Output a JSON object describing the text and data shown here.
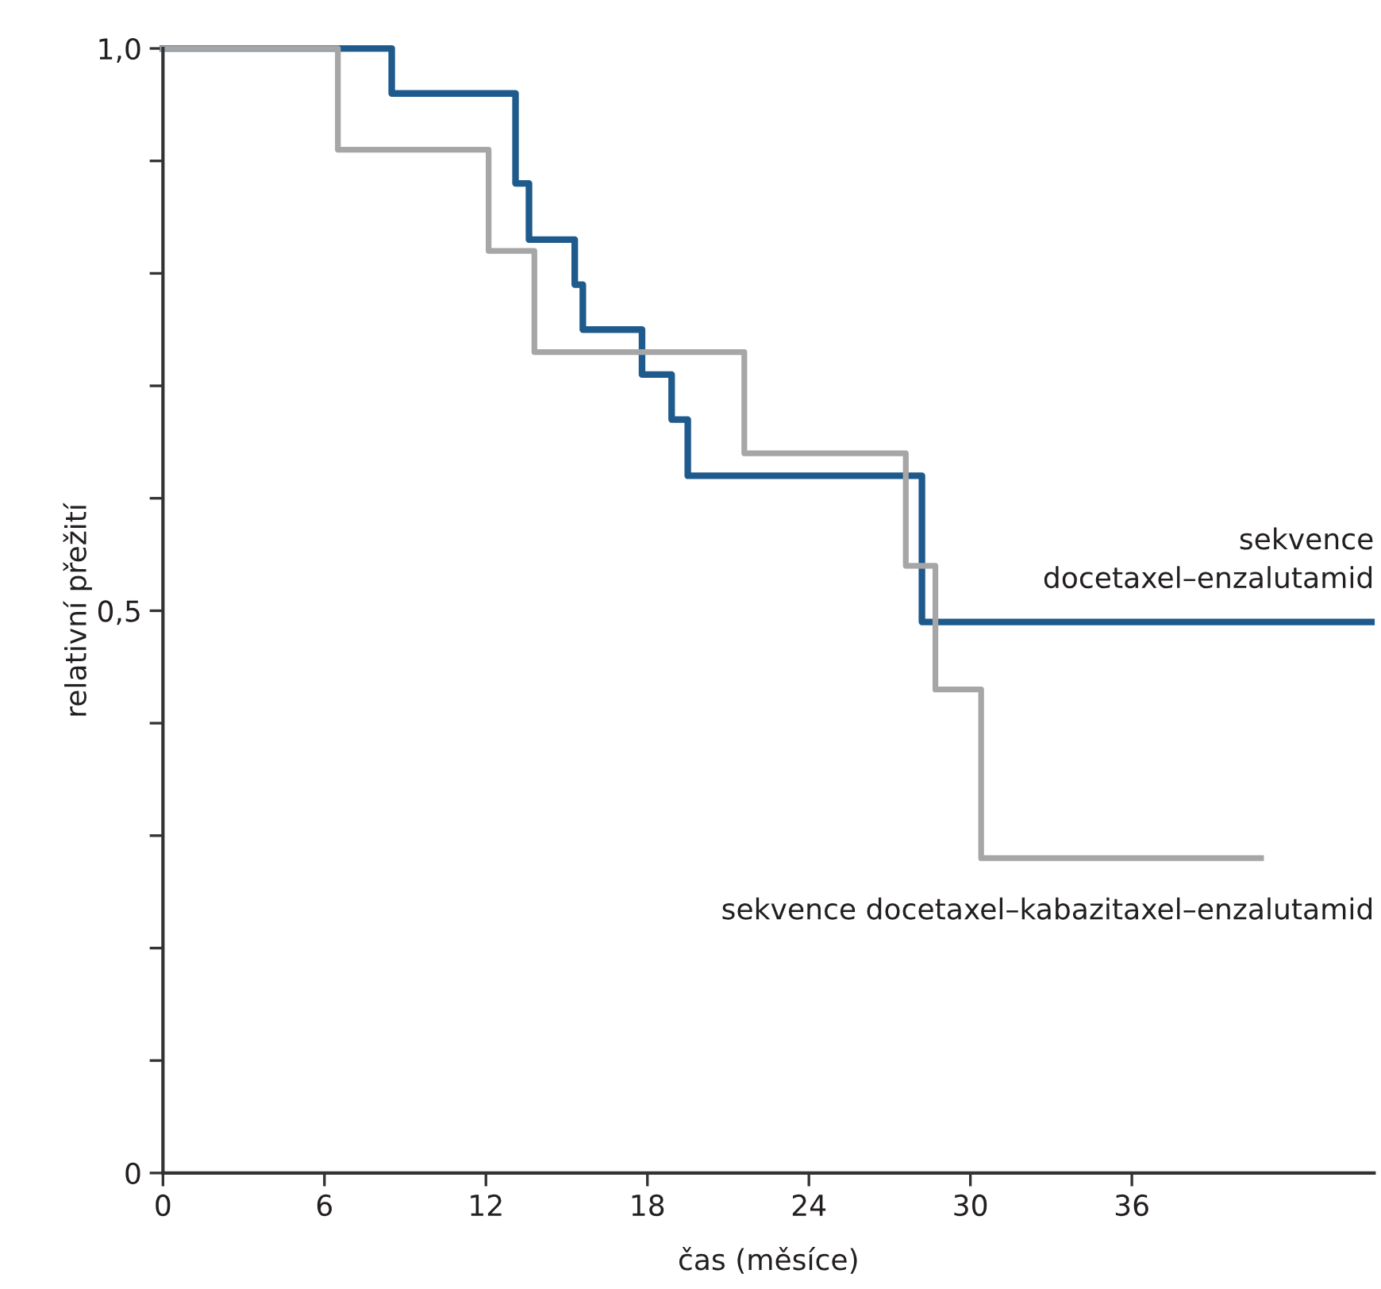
{
  "chart_data": {
    "type": "step",
    "xlabel": "čas (měsíce)",
    "ylabel": "relativní přežití",
    "xlim": [
      0,
      45
    ],
    "ylim": [
      0,
      1
    ],
    "xticks": [
      0,
      6,
      12,
      18,
      24,
      30,
      36
    ],
    "yticks": [
      {
        "value": 0,
        "label": "0"
      },
      {
        "value": 0.1,
        "label": null
      },
      {
        "value": 0.2,
        "label": null
      },
      {
        "value": 0.3,
        "label": null
      },
      {
        "value": 0.4,
        "label": null
      },
      {
        "value": 0.5,
        "label": "0,5"
      },
      {
        "value": 0.6,
        "label": null
      },
      {
        "value": 0.7,
        "label": null
      },
      {
        "value": 0.8,
        "label": null
      },
      {
        "value": 0.9,
        "label": null
      },
      {
        "value": 1.0,
        "label": "1,0"
      }
    ],
    "grid": false,
    "legend": false,
    "marker": "none",
    "line_style": "solid",
    "series": [
      {
        "name": "sekvence\ndocetaxel–enzalutamid",
        "color": "#1f5a8c",
        "x": [
          0,
          8.5,
          13.1,
          13.6,
          15.3,
          15.6,
          17.8,
          18.9,
          19.5,
          28.2,
          44.9
        ],
        "values": [
          1.0,
          0.96,
          0.88,
          0.83,
          0.79,
          0.75,
          0.71,
          0.67,
          0.62,
          0.49,
          0.49
        ]
      },
      {
        "name": "sekvence docetaxel–kabazitaxel–enzalutamid",
        "color": "#a6a6a6",
        "x": [
          0,
          6.5,
          12.1,
          13.8,
          21.6,
          27.6,
          28.7,
          30.4,
          40.8
        ],
        "values": [
          1.0,
          0.91,
          0.82,
          0.73,
          0.64,
          0.54,
          0.43,
          0.28,
          0.28
        ]
      }
    ]
  }
}
